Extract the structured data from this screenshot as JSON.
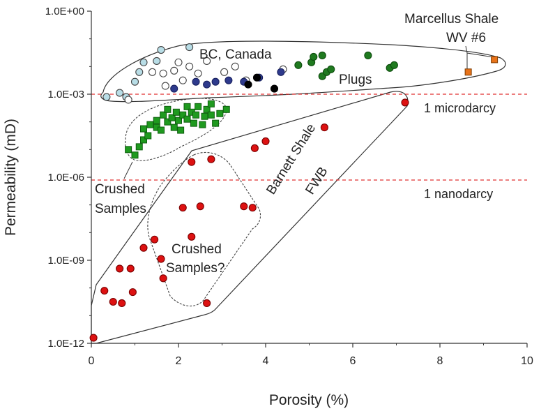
{
  "chart_data": {
    "type": "scatter",
    "xlabel": "Porosity (%)",
    "ylabel": "Permeability (mD)",
    "xlim": [
      0,
      10
    ],
    "ylim_log10": [
      -12,
      0
    ],
    "y_scale": "log",
    "x_ticks": [
      "0",
      "2",
      "4",
      "6",
      "8",
      "10"
    ],
    "y_ticks": [
      "1.0E-12",
      "1.0E-09",
      "1.0E-06",
      "1.0E-03",
      "1.0E+00"
    ],
    "reference_lines": [
      {
        "label": "1 microdarcy",
        "y_log10": -3,
        "color": "#e03030"
      },
      {
        "label": "1 nanodarcy",
        "y_log10": -6.1,
        "color": "#e03030"
      }
    ],
    "annotations": {
      "bc_canada": "BC, Canada",
      "plugs": "Plugs",
      "marcellus_line1": "Marcellus Shale",
      "marcellus_line2": "WV #6",
      "crushed_line1": "Crushed",
      "crushed_line2": "Samples",
      "crushed_q_line1": "Crushed",
      "crushed_q_line2": "Samples?",
      "barnett_line1": "Barnett Shale",
      "barnett_line2": "FWB"
    },
    "series": [
      {
        "group": "BC, Canada",
        "marker": "circle",
        "fill": "#b8dde6",
        "stroke": "#444444",
        "points": [
          [
            0.35,
            -3.1
          ],
          [
            0.65,
            -2.95
          ],
          [
            0.8,
            -3.1
          ],
          [
            1.0,
            -2.55
          ],
          [
            1.1,
            -2.2
          ],
          [
            1.2,
            -1.85
          ],
          [
            1.5,
            -1.8
          ],
          [
            1.6,
            -1.4
          ],
          [
            2.25,
            -1.3
          ]
        ]
      },
      {
        "group": "BC, Canada",
        "marker": "circle",
        "fill": "#ffffff",
        "stroke": "#444444",
        "points": [
          [
            0.85,
            -3.2
          ],
          [
            1.4,
            -2.2
          ],
          [
            1.65,
            -2.25
          ],
          [
            1.7,
            -2.7
          ],
          [
            1.9,
            -2.15
          ],
          [
            2.0,
            -1.85
          ],
          [
            2.1,
            -2.5
          ],
          [
            2.25,
            -2.0
          ],
          [
            2.45,
            -2.25
          ],
          [
            2.65,
            -1.8
          ],
          [
            3.05,
            -2.2
          ],
          [
            3.3,
            -2.0
          ],
          [
            3.55,
            -2.5
          ],
          [
            4.4,
            -2.1
          ]
        ]
      },
      {
        "group": "BC, Canada",
        "marker": "circle",
        "fill": "#2e3a8c",
        "stroke": "#1a2260",
        "points": [
          [
            1.9,
            -2.8
          ],
          [
            2.4,
            -2.55
          ],
          [
            2.65,
            -2.65
          ],
          [
            2.85,
            -2.55
          ],
          [
            3.15,
            -2.5
          ],
          [
            3.5,
            -2.55
          ],
          [
            3.85,
            -2.4
          ],
          [
            4.35,
            -2.2
          ]
        ]
      },
      {
        "group": "BC, Canada",
        "marker": "circle",
        "fill": "#000000",
        "stroke": "#000000",
        "points": [
          [
            3.6,
            -2.65
          ],
          [
            3.8,
            -2.4
          ],
          [
            4.2,
            -2.8
          ]
        ]
      },
      {
        "group": "Plugs",
        "marker": "circle",
        "fill": "#1f7a1f",
        "stroke": "#0e4d0e",
        "points": [
          [
            4.75,
            -1.95
          ],
          [
            5.05,
            -1.85
          ],
          [
            5.1,
            -1.65
          ],
          [
            5.3,
            -1.6
          ],
          [
            5.3,
            -2.35
          ],
          [
            5.4,
            -2.2
          ],
          [
            5.5,
            -2.1
          ],
          [
            6.35,
            -1.6
          ],
          [
            6.85,
            -2.05
          ],
          [
            6.95,
            -1.95
          ]
        ]
      },
      {
        "group": "Crushed Samples",
        "marker": "square",
        "fill": "#1f9a1f",
        "stroke": "#0e5e0e",
        "points": [
          [
            0.85,
            -5.0
          ],
          [
            1.0,
            -5.2
          ],
          [
            1.1,
            -4.9
          ],
          [
            1.2,
            -4.65
          ],
          [
            1.2,
            -4.25
          ],
          [
            1.3,
            -4.5
          ],
          [
            1.35,
            -4.1
          ],
          [
            1.5,
            -4.2
          ],
          [
            1.5,
            -3.95
          ],
          [
            1.6,
            -4.3
          ],
          [
            1.65,
            -3.75
          ],
          [
            1.75,
            -4.0
          ],
          [
            1.75,
            -3.55
          ],
          [
            1.85,
            -3.85
          ],
          [
            1.9,
            -4.2
          ],
          [
            1.95,
            -3.65
          ],
          [
            2.0,
            -3.95
          ],
          [
            2.05,
            -4.3
          ],
          [
            2.1,
            -3.75
          ],
          [
            2.2,
            -3.9
          ],
          [
            2.2,
            -3.45
          ],
          [
            2.3,
            -3.65
          ],
          [
            2.35,
            -4.05
          ],
          [
            2.4,
            -3.75
          ],
          [
            2.45,
            -3.45
          ],
          [
            2.55,
            -4.1
          ],
          [
            2.6,
            -3.8
          ],
          [
            2.65,
            -3.55
          ],
          [
            2.75,
            -3.75
          ],
          [
            2.75,
            -3.35
          ],
          [
            2.85,
            -4.05
          ],
          [
            2.95,
            -3.7
          ],
          [
            3.1,
            -3.55
          ]
        ]
      },
      {
        "group": "Barnett Shale FWB",
        "marker": "circle",
        "fill": "#dd1111",
        "stroke": "#7a0000",
        "points": [
          [
            0.05,
            -11.8
          ],
          [
            0.3,
            -10.1
          ],
          [
            0.5,
            -10.5
          ],
          [
            0.65,
            -9.3
          ],
          [
            0.7,
            -10.55
          ],
          [
            0.9,
            -9.3
          ],
          [
            0.95,
            -10.15
          ],
          [
            1.2,
            -8.55
          ],
          [
            1.45,
            -8.25
          ],
          [
            1.6,
            -8.95
          ],
          [
            1.65,
            -9.65
          ],
          [
            2.1,
            -7.1
          ],
          [
            2.3,
            -8.15
          ],
          [
            2.3,
            -5.45
          ],
          [
            2.5,
            -7.05
          ],
          [
            2.65,
            -10.55
          ],
          [
            2.75,
            -5.35
          ],
          [
            3.5,
            -7.05
          ],
          [
            3.7,
            -7.1
          ],
          [
            3.75,
            -4.95
          ],
          [
            4.0,
            -4.7
          ],
          [
            5.35,
            -4.2
          ],
          [
            7.2,
            -3.3
          ]
        ]
      },
      {
        "group": "Marcellus Shale WV #6",
        "marker": "square",
        "fill": "#e8731a",
        "stroke": "#7a3a00",
        "points": [
          [
            8.65,
            -2.2
          ],
          [
            9.25,
            -1.75
          ]
        ]
      }
    ],
    "regions": [
      {
        "label": "BC, Canada / Plugs / Marcellus",
        "style": "solid"
      },
      {
        "label": "Crushed Samples",
        "style": "dotted"
      },
      {
        "label": "Crushed Samples?",
        "style": "dotted"
      },
      {
        "label": "Barnett Shale FWB",
        "style": "solid"
      }
    ]
  }
}
